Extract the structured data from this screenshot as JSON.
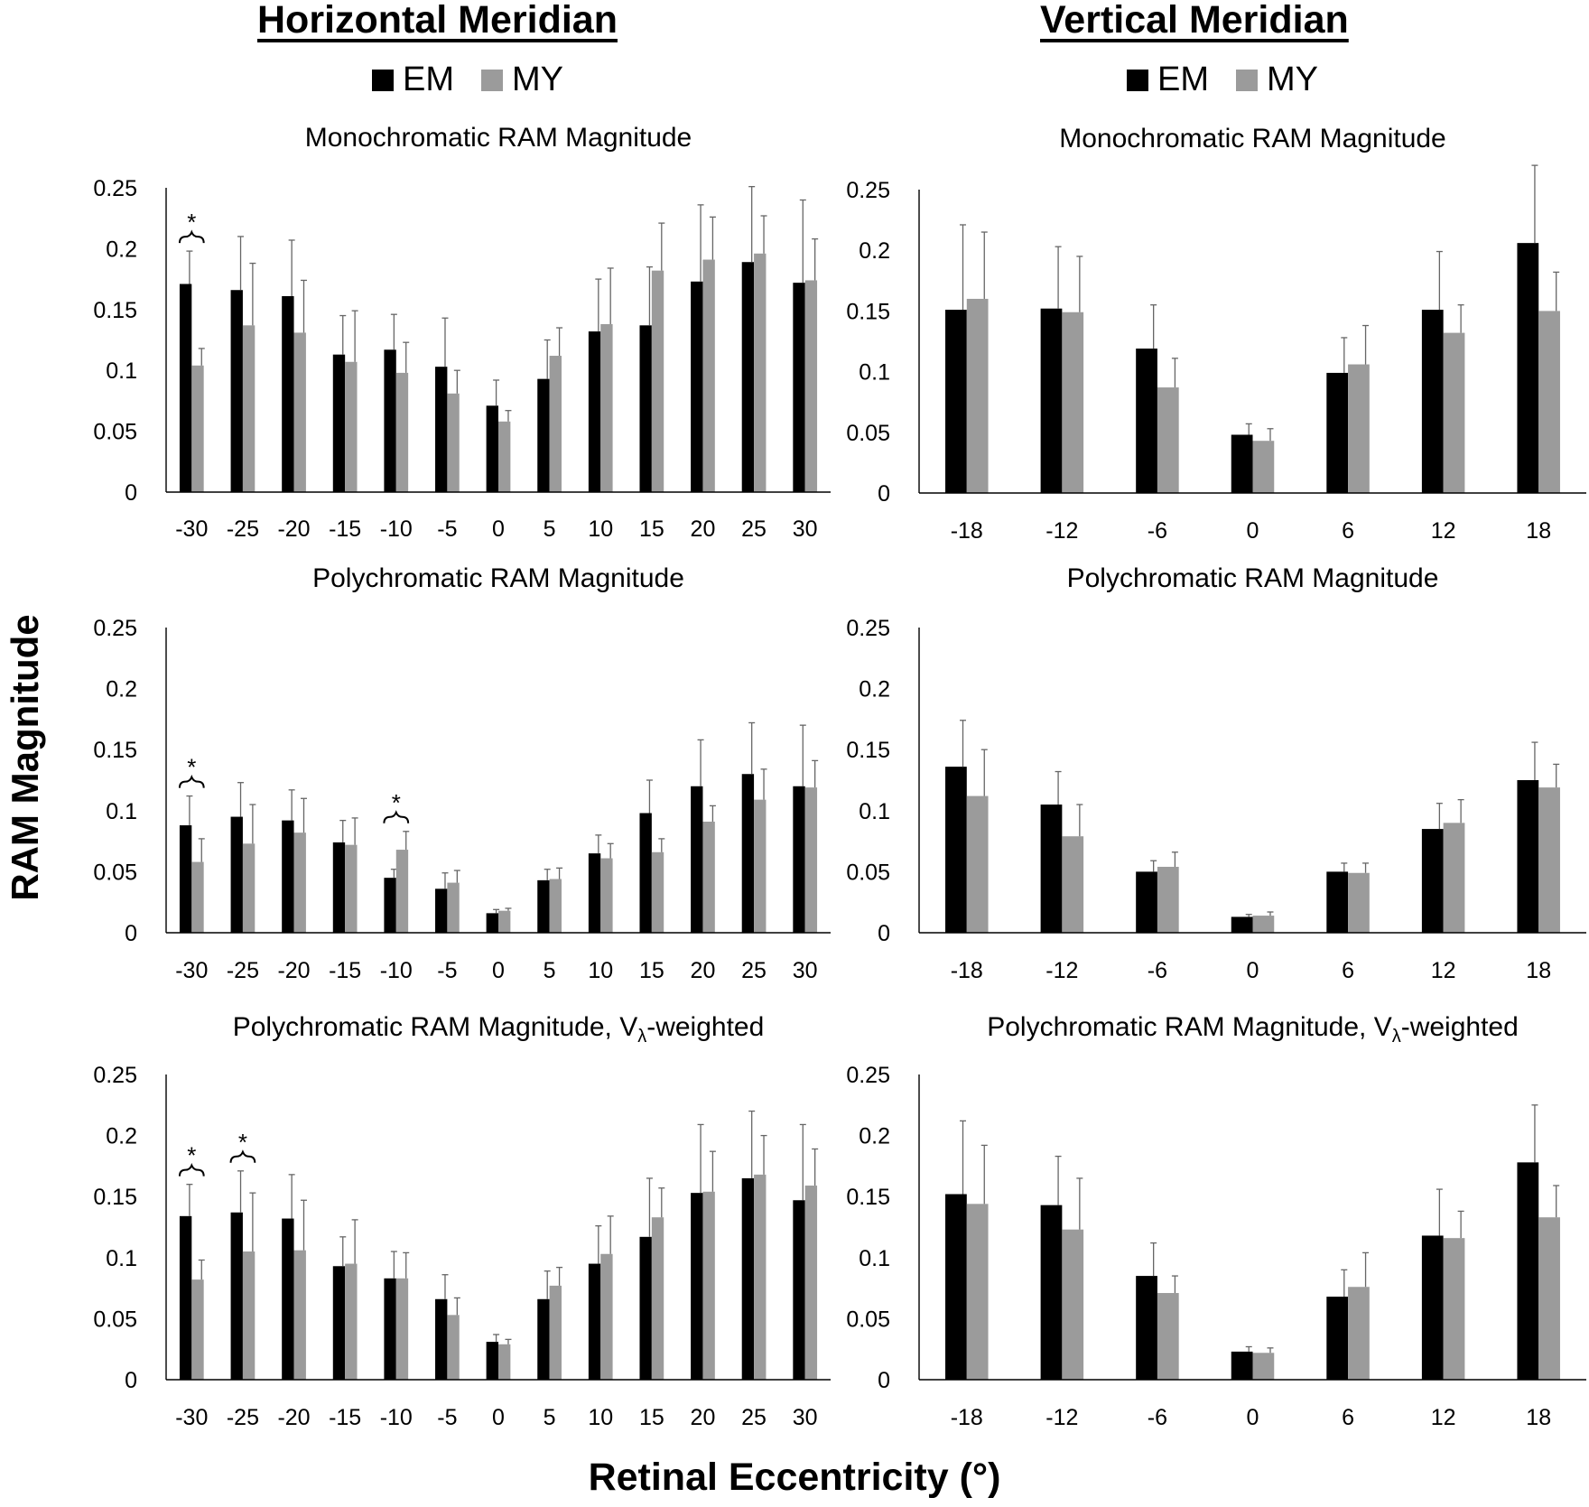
{
  "headers": {
    "horizontal": "Horizontal Meridian",
    "vertical": "Vertical Meridian"
  },
  "legend": {
    "em": "EM",
    "my": "MY"
  },
  "axes": {
    "y_title": "RAM Magnitude",
    "x_title": "Retinal Eccentricity (°)"
  },
  "colors": {
    "em": "#000000",
    "my": "#9b9b9b",
    "axis": "#000000",
    "errorbar": "#666666"
  },
  "chart_data": [
    {
      "type": "bar",
      "id": "h1",
      "meridian": "Horizontal Meridian",
      "title": "Monochromatic RAM Magnitude",
      "categories": [
        "-30",
        "-25",
        "-20",
        "-15",
        "-10",
        "-5",
        "0",
        "5",
        "10",
        "15",
        "20",
        "25",
        "30"
      ],
      "ylim": [
        0,
        0.25
      ],
      "yticks": [
        "0",
        "0.05",
        "0.1",
        "0.15",
        "0.2",
        "0.25"
      ],
      "series": [
        {
          "name": "EM",
          "values": [
            0.171,
            0.166,
            0.161,
            0.113,
            0.117,
            0.103,
            0.071,
            0.093,
            0.132,
            0.137,
            0.173,
            0.189,
            0.172
          ],
          "errors": [
            0.027,
            0.044,
            0.046,
            0.032,
            0.029,
            0.04,
            0.021,
            0.032,
            0.043,
            0.048,
            0.063,
            0.062,
            0.068
          ]
        },
        {
          "name": "MY",
          "values": [
            0.104,
            0.137,
            0.131,
            0.107,
            0.098,
            0.081,
            0.058,
            0.112,
            0.138,
            0.182,
            0.191,
            0.196,
            0.174
          ],
          "errors": [
            0.014,
            0.051,
            0.043,
            0.042,
            0.025,
            0.019,
            0.009,
            0.023,
            0.046,
            0.039,
            0.035,
            0.031,
            0.034
          ]
        }
      ],
      "significance": [
        {
          "category": "-30",
          "label": "*"
        }
      ]
    },
    {
      "type": "bar",
      "id": "v1",
      "meridian": "Vertical Meridian",
      "title": "Monochromatic RAM Magnitude",
      "categories": [
        "-18",
        "-12",
        "-6",
        "0",
        "6",
        "12",
        "18"
      ],
      "ylim": [
        0,
        0.25
      ],
      "yticks": [
        "0",
        "0.05",
        "0.1",
        "0.15",
        "0.2",
        "0.25"
      ],
      "series": [
        {
          "name": "EM",
          "values": [
            0.151,
            0.152,
            0.119,
            0.048,
            0.099,
            0.151,
            0.206
          ],
          "errors": [
            0.07,
            0.051,
            0.036,
            0.009,
            0.029,
            0.048,
            0.064
          ]
        },
        {
          "name": "MY",
          "values": [
            0.16,
            0.149,
            0.087,
            0.043,
            0.106,
            0.132,
            0.15
          ],
          "errors": [
            0.055,
            0.046,
            0.024,
            0.01,
            0.032,
            0.023,
            0.032
          ]
        }
      ],
      "significance": []
    },
    {
      "type": "bar",
      "id": "h2",
      "meridian": "Horizontal Meridian",
      "title": "Polychromatic RAM Magnitude",
      "categories": [
        "-30",
        "-25",
        "-20",
        "-15",
        "-10",
        "-5",
        "0",
        "5",
        "10",
        "15",
        "20",
        "25",
        "30"
      ],
      "ylim": [
        0,
        0.25
      ],
      "yticks": [
        "0",
        "0.05",
        "0.1",
        "0.15",
        "0.2",
        "0.25"
      ],
      "series": [
        {
          "name": "EM",
          "values": [
            0.088,
            0.095,
            0.092,
            0.074,
            0.045,
            0.036,
            0.016,
            0.043,
            0.065,
            0.098,
            0.12,
            0.13,
            0.12
          ],
          "errors": [
            0.024,
            0.028,
            0.025,
            0.018,
            0.007,
            0.013,
            0.003,
            0.009,
            0.015,
            0.027,
            0.038,
            0.042,
            0.05
          ]
        },
        {
          "name": "MY",
          "values": [
            0.058,
            0.073,
            0.082,
            0.072,
            0.068,
            0.041,
            0.018,
            0.044,
            0.061,
            0.066,
            0.091,
            0.109,
            0.119
          ],
          "errors": [
            0.019,
            0.032,
            0.028,
            0.022,
            0.015,
            0.01,
            0.002,
            0.009,
            0.012,
            0.011,
            0.013,
            0.025,
            0.022
          ]
        }
      ],
      "significance": [
        {
          "category": "-30",
          "label": "*"
        },
        {
          "category": "-10",
          "label": "*"
        }
      ]
    },
    {
      "type": "bar",
      "id": "v2",
      "meridian": "Vertical Meridian",
      "title": "Polychromatic RAM Magnitude",
      "categories": [
        "-18",
        "-12",
        "-6",
        "0",
        "6",
        "12",
        "18"
      ],
      "ylim": [
        0,
        0.25
      ],
      "yticks": [
        "0",
        "0.05",
        "0.1",
        "0.15",
        "0.2",
        "0.25"
      ],
      "series": [
        {
          "name": "EM",
          "values": [
            0.136,
            0.105,
            0.05,
            0.013,
            0.05,
            0.085,
            0.125
          ],
          "errors": [
            0.038,
            0.027,
            0.009,
            0.002,
            0.007,
            0.021,
            0.031
          ]
        },
        {
          "name": "MY",
          "values": [
            0.112,
            0.079,
            0.054,
            0.014,
            0.049,
            0.09,
            0.119
          ],
          "errors": [
            0.038,
            0.026,
            0.012,
            0.003,
            0.008,
            0.019,
            0.019
          ]
        }
      ],
      "significance": []
    },
    {
      "type": "bar",
      "id": "h3",
      "meridian": "Horizontal Meridian",
      "title": "Polychromatic RAM Magnitude, Vλ-weighted",
      "categories": [
        "-30",
        "-25",
        "-20",
        "-15",
        "-10",
        "-5",
        "0",
        "5",
        "10",
        "15",
        "20",
        "25",
        "30"
      ],
      "ylim": [
        0,
        0.25
      ],
      "yticks": [
        "0",
        "0.05",
        "0.1",
        "0.15",
        "0.2",
        "0.25"
      ],
      "series": [
        {
          "name": "EM",
          "values": [
            0.134,
            0.137,
            0.132,
            0.093,
            0.083,
            0.066,
            0.031,
            0.066,
            0.095,
            0.117,
            0.153,
            0.165,
            0.147
          ],
          "errors": [
            0.026,
            0.034,
            0.036,
            0.024,
            0.022,
            0.02,
            0.006,
            0.023,
            0.031,
            0.048,
            0.056,
            0.055,
            0.062
          ]
        },
        {
          "name": "MY",
          "values": [
            0.082,
            0.105,
            0.106,
            0.095,
            0.083,
            0.053,
            0.029,
            0.077,
            0.103,
            0.133,
            0.154,
            0.168,
            0.159
          ],
          "errors": [
            0.016,
            0.048,
            0.041,
            0.036,
            0.021,
            0.014,
            0.004,
            0.015,
            0.031,
            0.024,
            0.033,
            0.032,
            0.03
          ]
        }
      ],
      "significance": [
        {
          "category": "-30",
          "label": "*"
        },
        {
          "category": "-25",
          "label": "*"
        }
      ]
    },
    {
      "type": "bar",
      "id": "v3",
      "meridian": "Vertical Meridian",
      "title": "Polychromatic RAM Magnitude, Vλ-weighted",
      "categories": [
        "-18",
        "-12",
        "-6",
        "0",
        "6",
        "12",
        "18"
      ],
      "ylim": [
        0,
        0.25
      ],
      "yticks": [
        "0",
        "0.05",
        "0.1",
        "0.15",
        "0.2",
        "0.25"
      ],
      "series": [
        {
          "name": "EM",
          "values": [
            0.152,
            0.143,
            0.085,
            0.023,
            0.068,
            0.118,
            0.178
          ],
          "errors": [
            0.06,
            0.04,
            0.027,
            0.004,
            0.022,
            0.038,
            0.047
          ]
        },
        {
          "name": "MY",
          "values": [
            0.144,
            0.123,
            0.071,
            0.022,
            0.076,
            0.116,
            0.133
          ],
          "errors": [
            0.048,
            0.042,
            0.014,
            0.004,
            0.028,
            0.022,
            0.026
          ]
        }
      ],
      "significance": []
    }
  ]
}
